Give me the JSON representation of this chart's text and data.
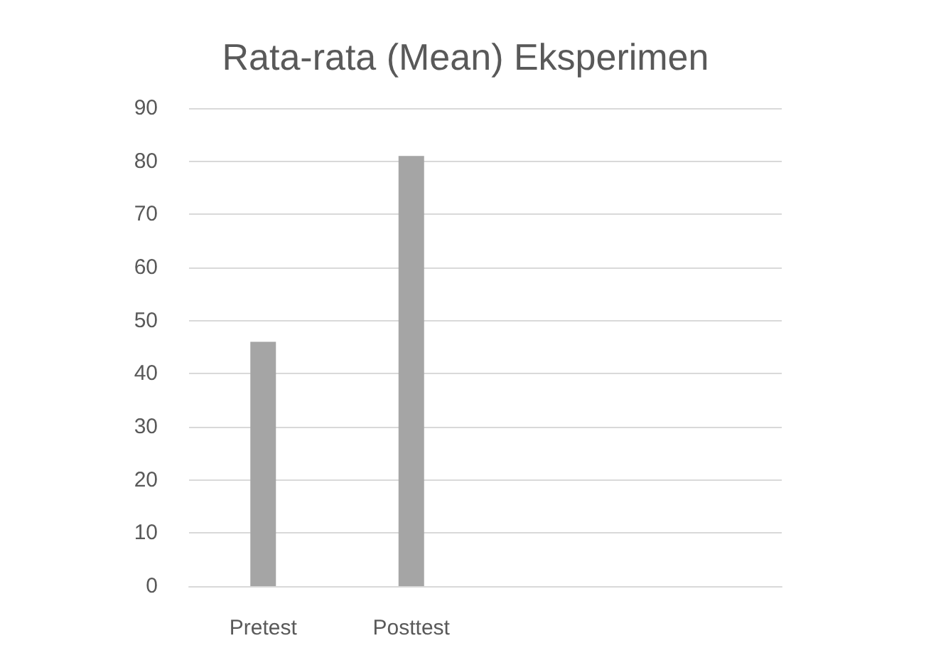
{
  "chart_data": {
    "type": "bar",
    "title": "Rata-rata (Mean) Eksperimen",
    "categories": [
      "Pretest",
      "Posttest",
      null,
      null
    ],
    "values": [
      46,
      81,
      null,
      null
    ],
    "color": "#a5a5a5",
    "ylim": [
      0,
      90
    ],
    "yticks": [
      0,
      10,
      20,
      30,
      40,
      50,
      60,
      70,
      80,
      90
    ],
    "grid": "y"
  }
}
